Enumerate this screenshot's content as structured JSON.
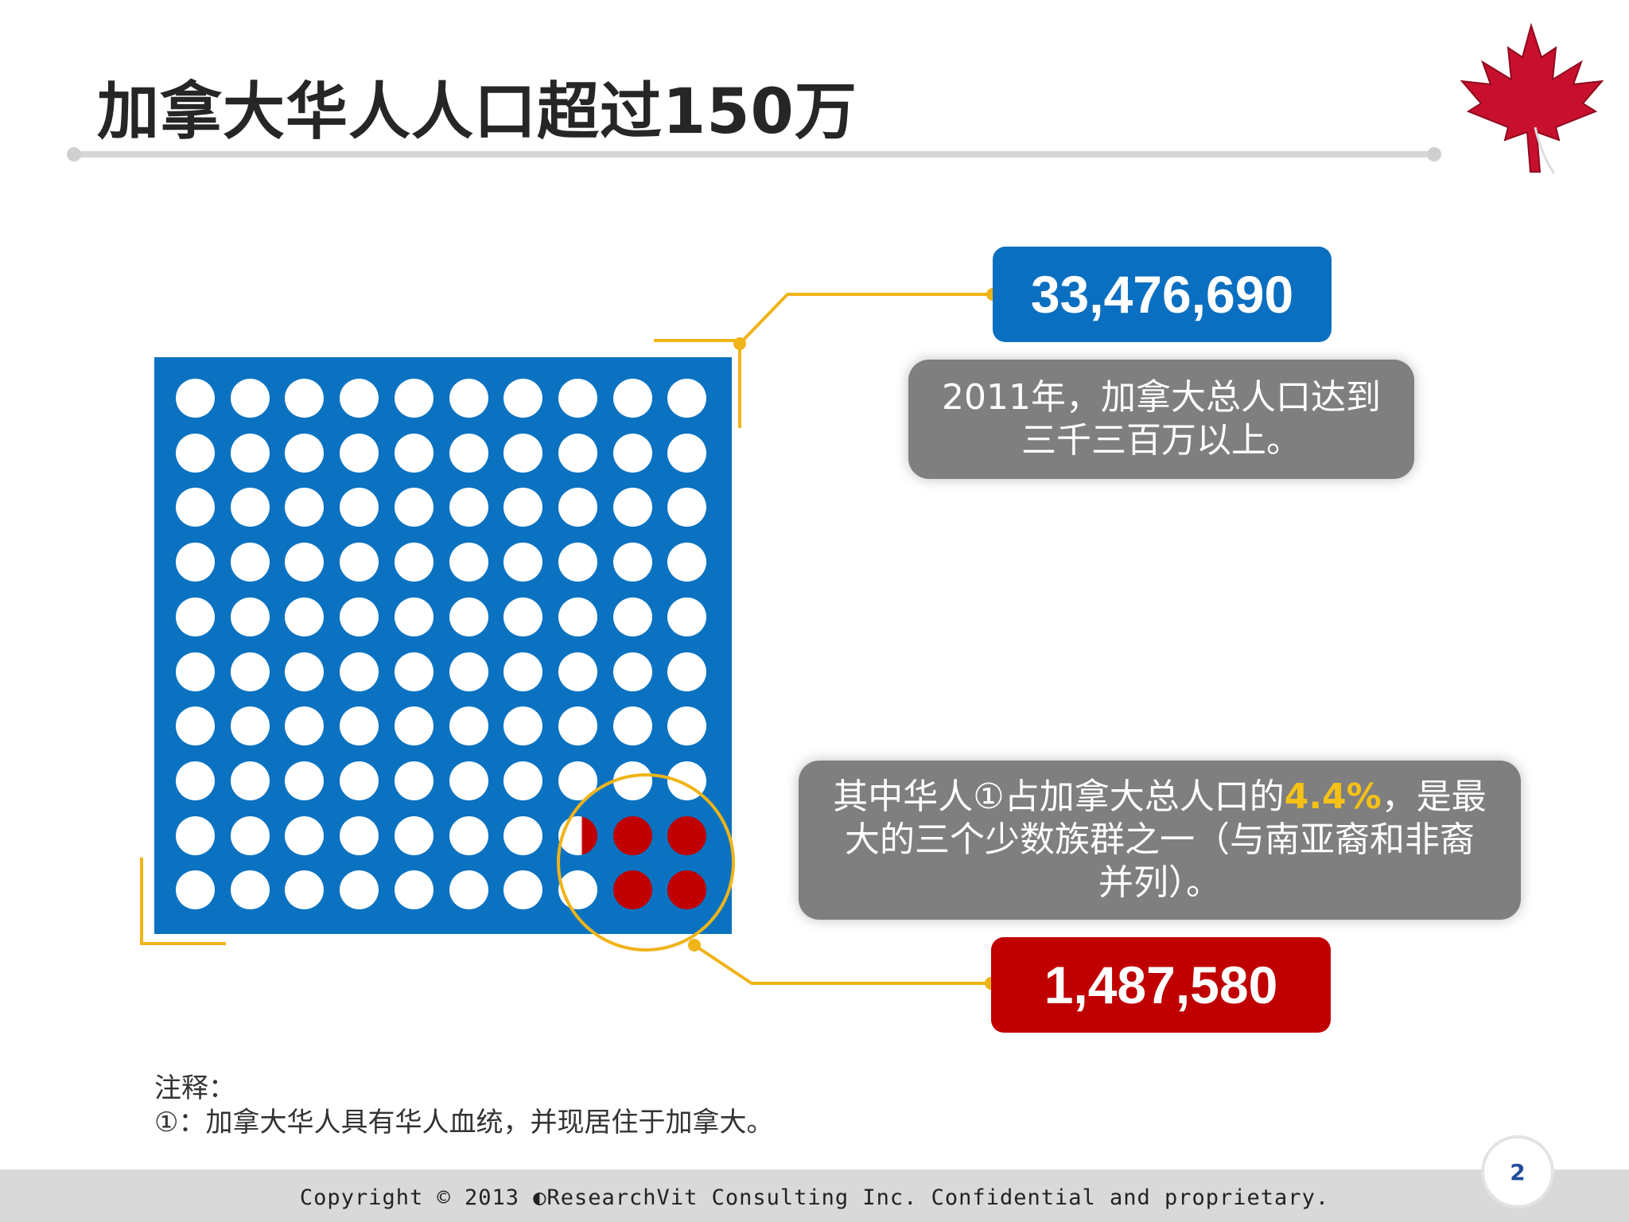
{
  "slide": {
    "title": "加拿大华人人口超过150万",
    "total_population": "33,476,690",
    "total_caption_line1": "2011年，加拿大总人口达到",
    "total_caption_line2": "三千三百万以上。",
    "chinese_caption_pre": "其中华人①占加拿大总人口的",
    "chinese_caption_pct": "4.4%",
    "chinese_caption_post": "，是最",
    "chinese_caption_line2": "大的三个少数族群之一（与南亚裔和非裔",
    "chinese_caption_line3": "并列）。",
    "chinese_population": "1,487,580",
    "note_heading": "注释：",
    "note_body": "①：加拿大华人具有华人血统，并现居住于加拿大。",
    "page_number": "2",
    "copyright": "Copyright © 2013 ◐ResearchVit Consulting Inc. Confidential and proprietary."
  },
  "colors": {
    "blue": "#0b72c1",
    "red": "#c00000",
    "gray_box": "#7f7f7f",
    "highlight": "#f5c116",
    "connector": "#f0b418"
  },
  "dot_grid": {
    "rows": 10,
    "cols": 10,
    "red_full": 4,
    "red_partial_fraction": 0.4,
    "share_percent": 4.4
  },
  "icons": [
    "maple-leaf-icon"
  ]
}
